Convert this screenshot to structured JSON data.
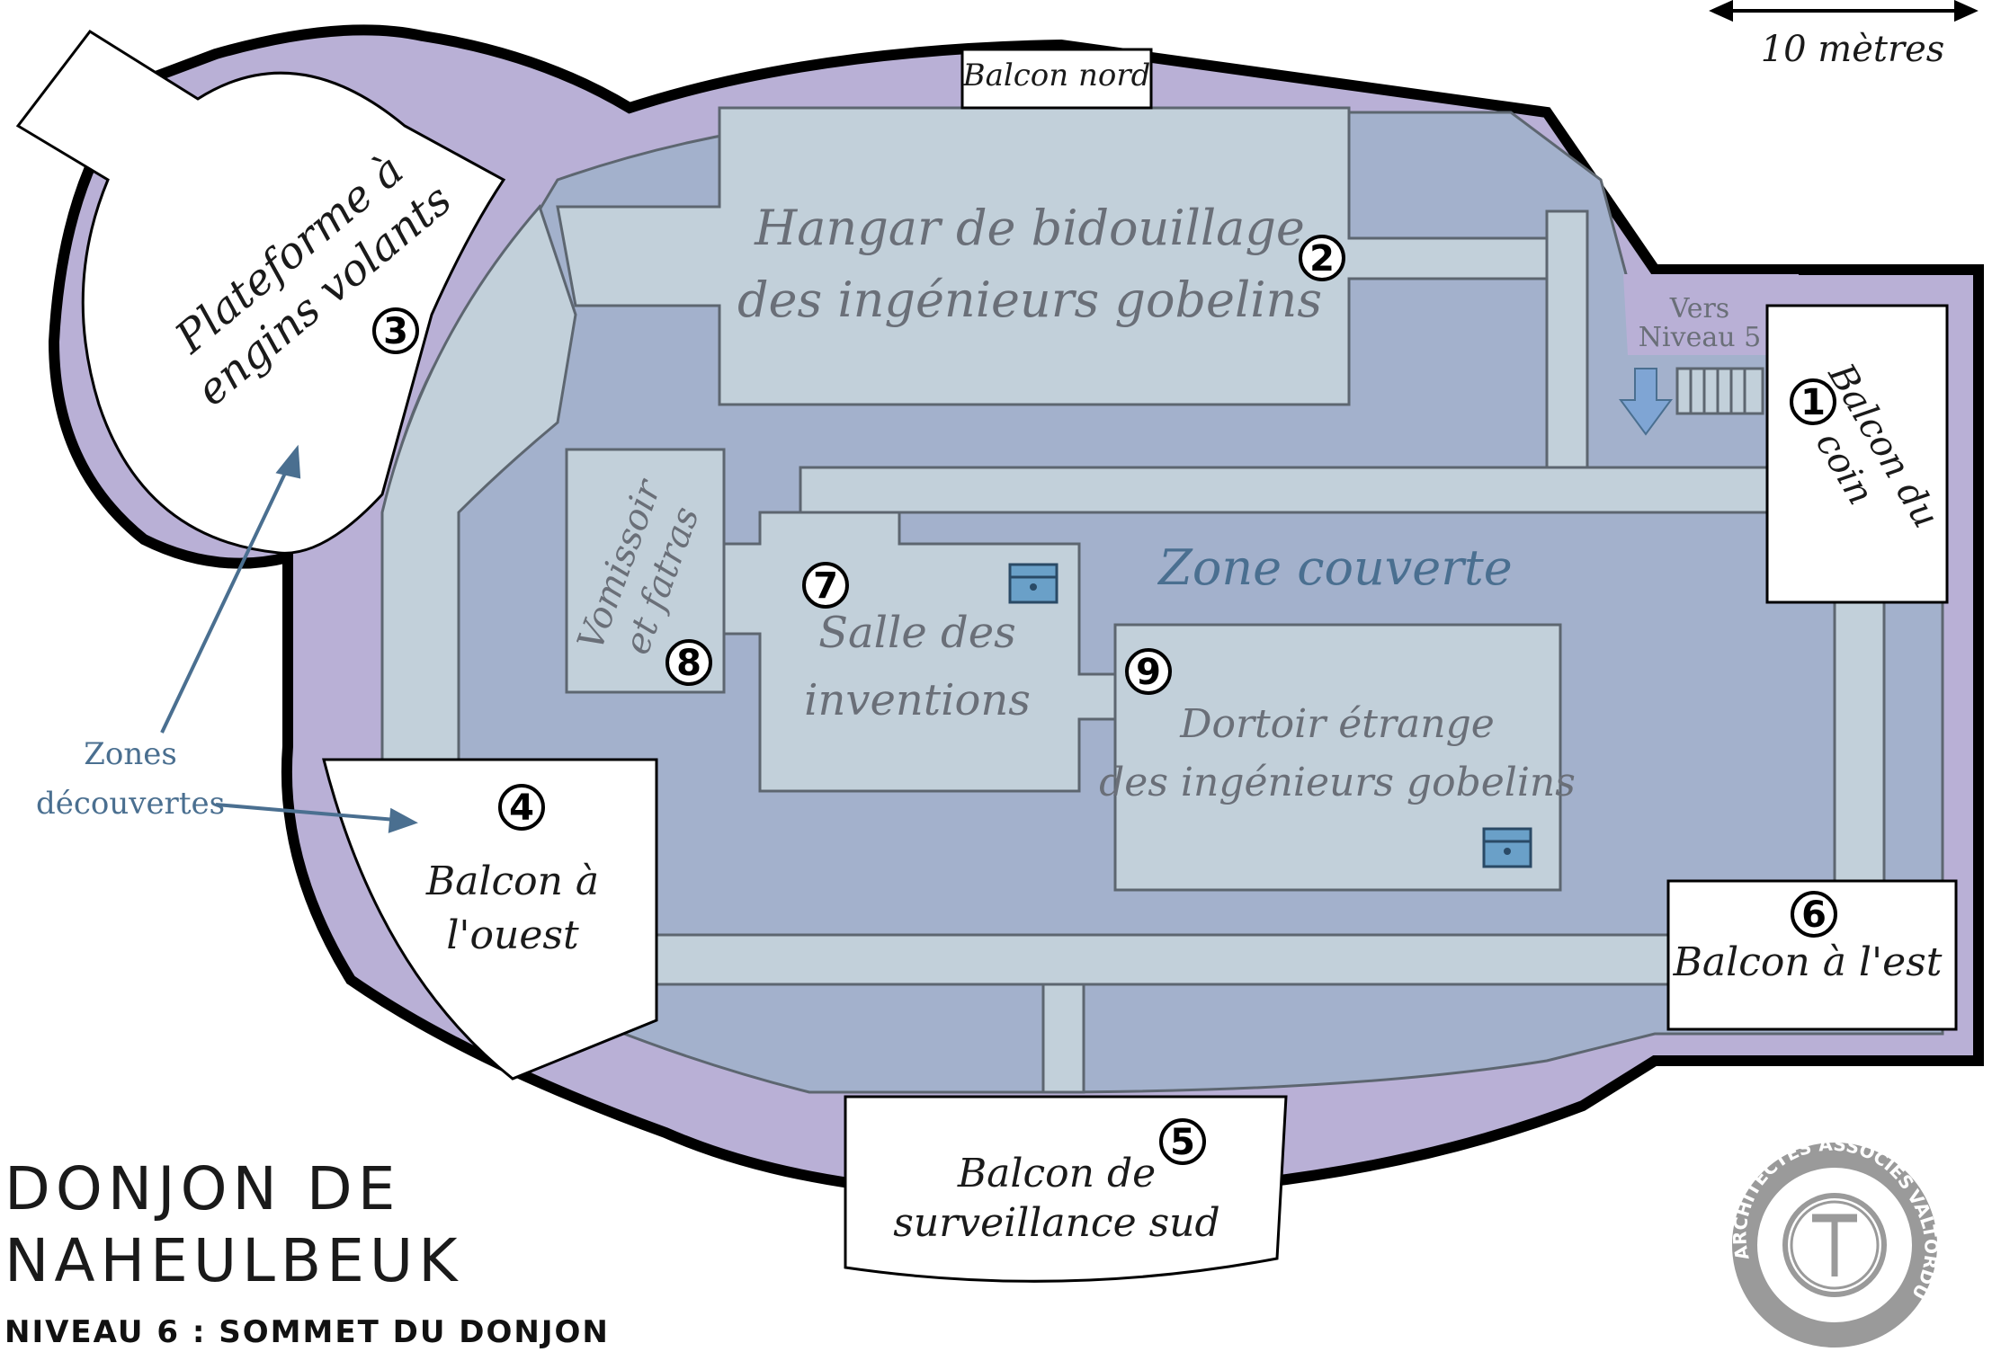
{
  "title": {
    "line1": "DONJON DE",
    "line2": "NAHEULBEUK",
    "subtitle": "NIVEAU 6 : SOMMET DU DONJON"
  },
  "scale": {
    "label": "10 mètres"
  },
  "rooms": {
    "hangar": {
      "line1": "Hangar de bidouillage",
      "line2": "des ingénieurs gobelins",
      "number": "2"
    },
    "plateforme": {
      "line1": "Plateforme à",
      "line2": "engins volants",
      "number": "3"
    },
    "balcon_nord": {
      "label": "Balcon nord"
    },
    "vers_niveau": {
      "line1": "Vers",
      "line2": "Niveau 5"
    },
    "balcon_coin": {
      "line1": "Balcon du",
      "line2": "coin",
      "number": "1"
    },
    "zone_couverte": {
      "label": "Zone couverte"
    },
    "vomissoir": {
      "line1": "Vomissoir",
      "line2": "et fatras",
      "number": "8"
    },
    "salle_inventions": {
      "line1": "Salle des",
      "line2": "inventions",
      "number": "7"
    },
    "dortoir": {
      "line1": "Dortoir étrange",
      "line2": "des ingénieurs gobelins",
      "number": "9"
    },
    "balcon_ouest": {
      "line1": "Balcon à",
      "line2": "l'ouest",
      "number": "4"
    },
    "balcon_est": {
      "label": "Balcon à l'est",
      "number": "6"
    },
    "balcon_sud": {
      "line1": "Balcon de",
      "line2": "surveillance sud",
      "number": "5"
    }
  },
  "annotations": {
    "zones_line1": "Zones",
    "zones_line2": "découvertes"
  },
  "logo": {
    "top": "ARCHITECTES ASSOCIÉS",
    "right": "VALTORDU"
  },
  "colors": {
    "outer": "#b9b0d6",
    "covered": "#a3b1cc",
    "room": "#c2d0da",
    "balcony": "#ffffff",
    "border": "#000000",
    "wall_line": "#5d6670",
    "label_blue": "#4a6f90"
  },
  "icons": [
    "chest-icon",
    "stairs-icon",
    "down-arrow-icon",
    "logo-seal"
  ]
}
